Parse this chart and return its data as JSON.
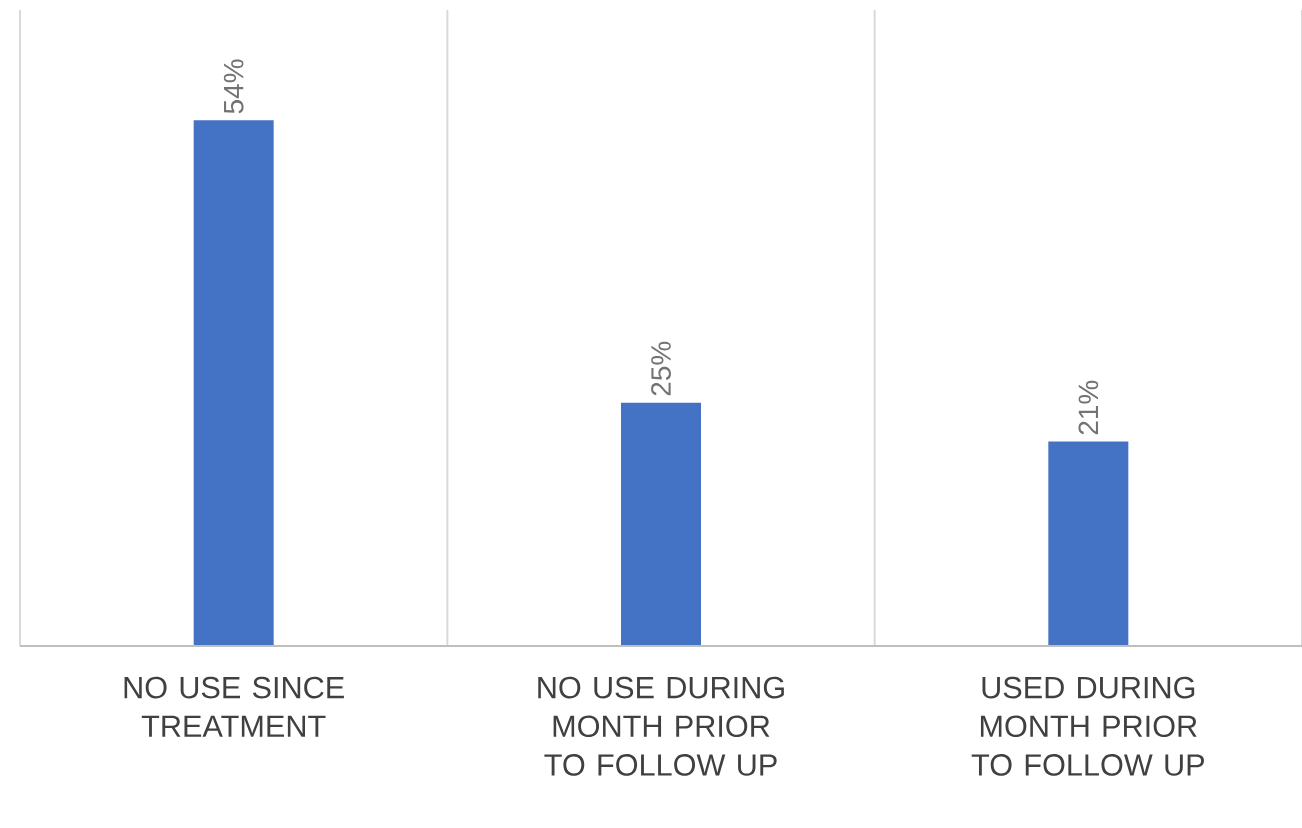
{
  "chart_data": {
    "type": "bar",
    "categories": [
      "NO USE SINCE TREATMENT",
      "NO USE DURING MONTH PRIOR TO FOLLOW UP",
      "USED DURING MONTH PRIOR TO FOLLOW UP"
    ],
    "values": [
      54,
      25,
      21
    ],
    "value_labels": [
      "54%",
      "25%",
      "21%"
    ],
    "color": "#4472c4",
    "grid": "x"
  }
}
